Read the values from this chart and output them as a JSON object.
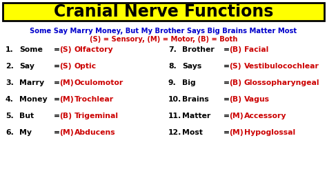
{
  "title": "Cranial Nerve Functions",
  "title_bg": "#ffff00",
  "title_color": "#000000",
  "mnemonic": "Some Say Marry Money, But My Brother Says Big Brains Matter Most",
  "mnemonic_color": "#0000cc",
  "legend": "(S) = Sensory, (M) = Motor, (B) = Both",
  "legend_color": "#cc0000",
  "bg_color": "#ffffff",
  "left_items": [
    {
      "num": "1.",
      "word": "Some",
      "code": "(S)",
      "nerve": "Olfactory"
    },
    {
      "num": "2.",
      "word": "Say",
      "code": "(S)",
      "nerve": "Optic"
    },
    {
      "num": "3.",
      "word": "Marry",
      "code": "(M)",
      "nerve": "Oculomotor"
    },
    {
      "num": "4.",
      "word": "Money",
      "code": "(M)",
      "nerve": "Trochlear"
    },
    {
      "num": "5.",
      "word": "But",
      "code": "(B)",
      "nerve": "Trigeminal"
    },
    {
      "num": "6.",
      "word": "My",
      "code": "(M)",
      "nerve": "Abducens"
    }
  ],
  "right_items": [
    {
      "num": "7.",
      "word": "Brother",
      "code": "(B)",
      "nerve": "Facial"
    },
    {
      "num": "8.",
      "word": "Says",
      "code": "(S)",
      "nerve": "Vestibulocochlear"
    },
    {
      "num": "9.",
      "word": "Big",
      "code": "(B)",
      "nerve": "Glossopharyngeal"
    },
    {
      "num": "10.",
      "word": "Brains",
      "code": "(B)",
      "nerve": "Vagus"
    },
    {
      "num": "11.",
      "word": "Matter",
      "code": "(M)",
      "nerve": "Accessory"
    },
    {
      "num": "12.",
      "word": "Most",
      "code": "(M)",
      "nerve": "Hypoglossal"
    }
  ],
  "black_color": "#000000",
  "red_color": "#cc0000",
  "blue_color": "#0000cc",
  "title_fontsize": 17,
  "mnemonic_fontsize": 7.2,
  "legend_fontsize": 7.2,
  "item_fontsize": 7.8
}
